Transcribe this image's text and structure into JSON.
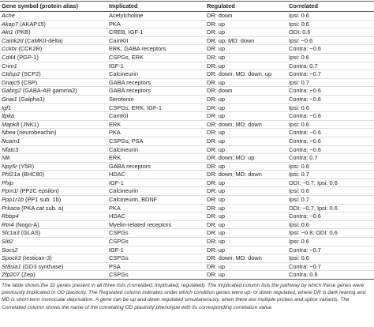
{
  "table": {
    "header": [
      "Gene symbol (protein alias)",
      "Implicated",
      "Regulated",
      "Correlated"
    ],
    "rows": [
      [
        {
          "symbol": "Ache"
        },
        "Acetylcholine",
        "DR: down",
        "Ipsi: 0.6"
      ],
      [
        {
          "symbol": "Akap7",
          "alias": "(AKAP15)"
        },
        "PKA",
        "DR: up",
        "Ipsi: 0.6"
      ],
      [
        {
          "symbol": "Akt1",
          "alias": "(PKB)"
        },
        "CREB, IGF-1",
        "DR: up",
        "ODI: 0.6"
      ],
      [
        {
          "symbol": "Camk2d",
          "alias": "(CaMKII-delta)"
        },
        "CamKII",
        "DR: up; MD: down",
        "Ipsi: −0.6"
      ],
      [
        {
          "symbol": "Cckbr",
          "alias": "(CCK2R)"
        },
        "ERK, GABA receptors",
        "DR: up",
        "Contra: −0.6"
      ],
      [
        {
          "symbol": "Cd44",
          "alias": "(PGP-1)"
        },
        "CSPGs, ERK",
        "DR: up",
        "Ipsi: 0.6"
      ],
      [
        {
          "symbol": "Crim1"
        },
        "IGF-1",
        "DR: up",
        "Contra: 0.7"
      ],
      [
        {
          "symbol": "Ctdsp2",
          "alias": "(SCP2)"
        },
        "Calcineurin",
        "DR: down; MD: down, up",
        "Contra: −0.7"
      ],
      [
        {
          "symbol": "Dnajc5",
          "alias": "(CSP)"
        },
        "GABA receptors",
        "DR: up",
        "Ipsi: 0.7"
      ],
      [
        {
          "symbol": "Gabrg2",
          "alias": "(GABA-AR gamma2)"
        },
        "GABA receptors",
        "DR: down",
        "Contra: −0.6"
      ],
      [
        {
          "symbol": "Gnai1",
          "alias": "(Galpha1)"
        },
        "Serotonin",
        "DR: up",
        "Contra: −0.6"
      ],
      [
        {
          "symbol": "Igf1"
        },
        "CSPGs, ERK, IGF-1",
        "DR: up",
        "Ipsi: 0.6"
      ],
      [
        {
          "symbol": "Itpka"
        },
        "CamKII",
        "DR: up",
        "Contra: −0.6"
      ],
      [
        {
          "symbol": "Mapk8",
          "alias": "(JNK1)"
        },
        "ERK",
        "DR: down; MD: down",
        "Ipsi: 0.6"
      ],
      [
        {
          "symbol": "Nbea",
          "alias": "(neurobeachin)"
        },
        "PKA",
        "DR: up",
        "Contra: −0.6"
      ],
      [
        {
          "symbol": "Ncam1"
        },
        "CSPGs, PSA",
        "DR: up",
        "Contra: −0.6"
      ],
      [
        {
          "symbol": "Nfatc3"
        },
        "Calcineurin",
        "DR: up",
        "Contra: −0.6"
      ],
      [
        {
          "symbol": "Nlk"
        },
        "ERK",
        "DR: down; MD: up",
        "Contra: 0.7"
      ],
      [
        {
          "symbol": "Npy5r",
          "alias": "(Y5R)"
        },
        "GABA receptors",
        "DR: up",
        "Ipsi: 0.6"
      ],
      [
        {
          "symbol": "Phf21a",
          "alias": "(BHC80)"
        },
        "HDAC",
        "DR: down; MD: down",
        "Ipsi: 0.7"
      ],
      [
        {
          "symbol": "Phip"
        },
        "IGF-1",
        "DR: up",
        "ODI: −0.7; Ipsi: 0.6"
      ],
      [
        {
          "symbol": "Ppm1l",
          "alias": "(PP2C epsilon)"
        },
        "Calcineurin",
        "DR: up",
        "Ipsi: 0.6"
      ],
      [
        {
          "symbol": "Ppp1r1b",
          "alias": "(PP1 sub. 1b)"
        },
        "Calcineurin, BDNF",
        "DR: up",
        "Ipsi: 0.7"
      ],
      [
        {
          "symbol": "Prkaca",
          "alias": "(PKA cat sub. a)"
        },
        "PKA",
        "DR: up",
        "ODI: −0.7, Ipsi: 0.6"
      ],
      [
        {
          "symbol": "Rbbp4"
        },
        "HDAC",
        "DR: up",
        "Contra: −0.6"
      ],
      [
        {
          "symbol": "Rtn4",
          "alias": "(Nogo-A)"
        },
        "Myelin-related receptors",
        "DR: up",
        "Ipsi: 0.6"
      ],
      [
        {
          "symbol": "Slc1a3",
          "alias": "(GLAS)"
        },
        "CSPGs",
        "DR: up",
        "Ipsi: −0.8; ODI: 0.6"
      ],
      [
        {
          "symbol": "Slit2"
        },
        "CSPGs",
        "DR: up",
        "Ipsi: 0.6"
      ],
      [
        {
          "symbol": "Socs2"
        },
        "IGF-1",
        "DR: up",
        "Contra: −0.7"
      ],
      [
        {
          "symbol": "Spock3",
          "alias": "(testican-3)"
        },
        "CSPGs",
        "DR: down; MD: down",
        "Ipsi: 0.6"
      ],
      [
        {
          "symbol": "St8sia1",
          "alias": "(GD3 synthase)"
        },
        "PSA",
        "DR: up",
        "Contra: −0.7"
      ],
      [
        {
          "symbol": "Zfp207",
          "alias": "(Zep)"
        },
        "CSPGs",
        "DR: up",
        "Contra: 0.6"
      ]
    ]
  },
  "note": "The table shows the 32 genes present in all three lists (correlated, implicated, regulated). The Implicated column lists the pathway by which these genes were previously implicated in OD plasticity. The Regulated column indicates under which condition genes were up- or down regulated, where DR is dark rearing and MD is short-term monocular deprivation. A gene can be up and down regulated simultaneously, when there are multiple probes and splice variants. The Correlated column shows the name of the correlating OD plasticity phenotype with its corresponding correlation value."
}
